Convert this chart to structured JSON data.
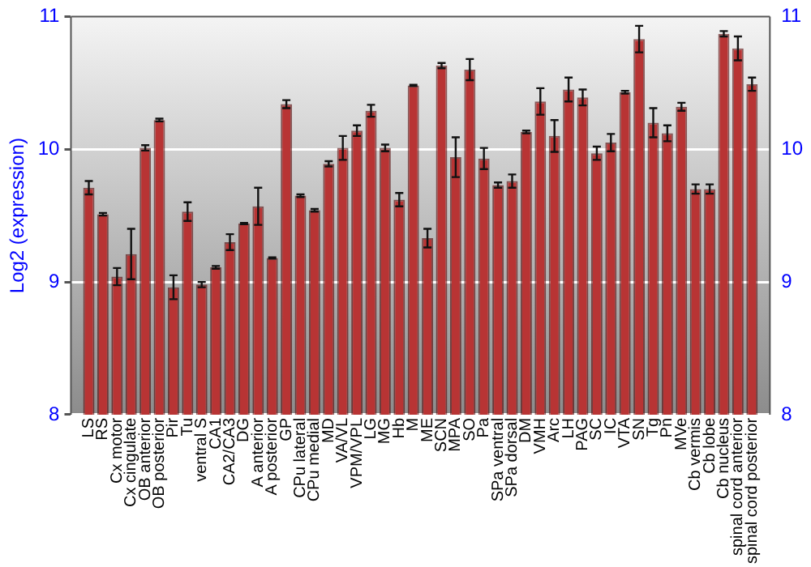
{
  "chart_data": {
    "type": "bar",
    "ylabel": "Log2 (expression)",
    "categories": [
      "LS",
      "RS",
      "Cx motor",
      "Cx cingulate",
      "OB anterior",
      "OB posterior",
      "Pir",
      "Tu",
      "ventral S",
      "CA1",
      "CA2/CA3",
      "DG",
      "A anterior",
      "A posterior",
      "GP",
      "CPu lateral",
      "CPu medial",
      "MD",
      "VA/VL",
      "VPM/VPL",
      "LG",
      "MG",
      "Hb",
      "M",
      "ME",
      "SCN",
      "MPA",
      "SO",
      "Pa",
      "SPa ventral",
      "SPa dorsal",
      "DM",
      "VMH",
      "Arc",
      "LH",
      "PAG",
      "SC",
      "IC",
      "VTA",
      "SN",
      "Tg",
      "Pn",
      "MVe",
      "Cb vermis",
      "Cb lobe",
      "Cb nucleus",
      "spinal cord anterior",
      "spinal cord posterior"
    ],
    "values": [
      9.71,
      9.51,
      9.04,
      9.21,
      10.01,
      10.22,
      8.96,
      9.53,
      8.98,
      9.11,
      9.3,
      9.44,
      9.57,
      9.18,
      10.34,
      9.65,
      9.54,
      9.89,
      10.01,
      10.14,
      10.29,
      10.01,
      9.62,
      10.48,
      9.33,
      10.63,
      9.94,
      10.6,
      9.93,
      9.73,
      9.76,
      10.13,
      10.36,
      10.1,
      10.45,
      10.39,
      9.97,
      10.05,
      10.43,
      10.83,
      10.2,
      10.12,
      10.32,
      9.7,
      9.7,
      10.87,
      10.76,
      10.49
    ],
    "errors": [
      0.05,
      0.01,
      0.065,
      0.19,
      0.02,
      0.01,
      0.09,
      0.07,
      0.02,
      0.01,
      0.06,
      0.005,
      0.14,
      0.005,
      0.03,
      0.01,
      0.01,
      0.02,
      0.09,
      0.04,
      0.045,
      0.025,
      0.05,
      0.005,
      0.07,
      0.02,
      0.15,
      0.08,
      0.08,
      0.02,
      0.05,
      0.01,
      0.1,
      0.12,
      0.09,
      0.06,
      0.05,
      0.065,
      0.01,
      0.1,
      0.11,
      0.06,
      0.03,
      0.035,
      0.035,
      0.02,
      0.09,
      0.05
    ],
    "color": "#b83434",
    "ylim": [
      8,
      11
    ],
    "yticks": [
      8,
      9,
      10,
      11
    ],
    "y2lim": [
      8,
      11
    ],
    "y2ticks": [
      8,
      9,
      10,
      11
    ],
    "grid": "y"
  }
}
